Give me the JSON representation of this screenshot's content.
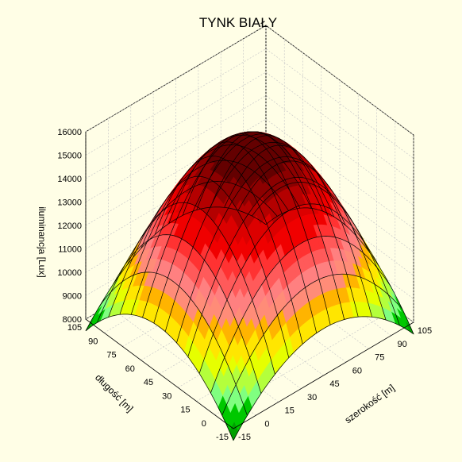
{
  "chart_data": {
    "type": "surface",
    "title": "TYNK BIAŁY",
    "xlabel": "szerokość [m]",
    "ylabel": "długość [m]",
    "zlabel": "iluminancja [Lux]",
    "xlim": [
      -15,
      105
    ],
    "ylim": [
      -15,
      105
    ],
    "zlim": [
      8000,
      16000
    ],
    "x_ticks": [
      -15,
      0,
      15,
      30,
      45,
      60,
      75,
      90,
      105
    ],
    "y_ticks": [
      -15,
      0,
      15,
      30,
      45,
      60,
      75,
      90,
      105
    ],
    "z_ticks": [
      8000,
      9000,
      10000,
      11000,
      12000,
      13000,
      14000,
      15000,
      16000
    ],
    "surface": {
      "peak_x": 45,
      "peak_y": 45,
      "peak_z": 15600,
      "corner_z": 7500,
      "edge_mid_z": 10000,
      "grid_x_range": [
        -15,
        105
      ],
      "grid_y_range": [
        -15,
        105
      ],
      "grid_steps": 13
    },
    "color_bands": [
      {
        "from": 7000,
        "to": 8000,
        "color": "#00a000"
      },
      {
        "from": 8000,
        "to": 8500,
        "color": "#00c800"
      },
      {
        "from": 8500,
        "to": 9000,
        "color": "#80ff80"
      },
      {
        "from": 9000,
        "to": 9500,
        "color": "#b4ff3c"
      },
      {
        "from": 9500,
        "to": 10000,
        "color": "#e6ff00"
      },
      {
        "from": 10000,
        "to": 10500,
        "color": "#ffe600"
      },
      {
        "from": 10500,
        "to": 11000,
        "color": "#ffb400"
      },
      {
        "from": 11000,
        "to": 11500,
        "color": "#ff8c78"
      },
      {
        "from": 11500,
        "to": 12000,
        "color": "#ff8080"
      },
      {
        "from": 12000,
        "to": 12500,
        "color": "#ff5a5a"
      },
      {
        "from": 12500,
        "to": 13000,
        "color": "#ff3232"
      },
      {
        "from": 13000,
        "to": 13500,
        "color": "#f00000"
      },
      {
        "from": 13500,
        "to": 14000,
        "color": "#dc0000"
      },
      {
        "from": 14000,
        "to": 14500,
        "color": "#b40000"
      },
      {
        "from": 14500,
        "to": 15000,
        "color": "#8c0000"
      },
      {
        "from": 15000,
        "to": 16000,
        "color": "#640000"
      }
    ],
    "grid": true
  },
  "colors": {
    "background": "#fffee6",
    "gridline": "#c8c8c8",
    "frame": "#000000",
    "mesh": "#000000"
  }
}
